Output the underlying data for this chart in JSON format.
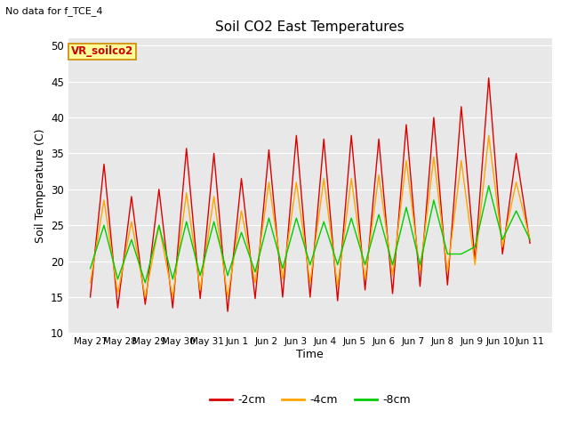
{
  "title": "Soil CO2 East Temperatures",
  "xlabel": "Time",
  "ylabel": "Soil Temperature (C)",
  "note": "No data for f_TCE_4",
  "annotation": "VR_soilco2",
  "ylim": [
    10,
    51
  ],
  "yticks": [
    10,
    15,
    20,
    25,
    30,
    35,
    40,
    45,
    50
  ],
  "xlabels": [
    "May 27",
    "May 28",
    "May 29",
    "May 30",
    "May 31",
    "Jun 1",
    "Jun 2",
    "Jun 3",
    "Jun 4",
    "Jun 5",
    "Jun 6",
    "Jun 7",
    "Jun 8",
    "Jun 9",
    "Jun 10",
    "Jun 11"
  ],
  "colors": {
    "neg2cm": "#dd0000",
    "neg4cm": "#ffa500",
    "neg8cm": "#00cc00",
    "background": "#e8e8e8",
    "annotation_bg": "#ffff99",
    "annotation_border": "#cc8800"
  },
  "legend": [
    "-2cm",
    "-4cm",
    "-8cm"
  ],
  "t_neg2cm": [
    15.0,
    33.5,
    13.5,
    29.0,
    14.0,
    30.0,
    13.5,
    35.7,
    14.8,
    35.0,
    13.0,
    31.5,
    14.8,
    35.5,
    15.0,
    37.5,
    15.0,
    37.0,
    14.5,
    37.5,
    16.0,
    37.0,
    15.5,
    39.0,
    16.5,
    40.0,
    16.7,
    41.5,
    20.0,
    45.5,
    21.0,
    35.0,
    22.5
  ],
  "t_neg4cm": [
    17.0,
    28.5,
    15.5,
    25.5,
    15.0,
    25.0,
    15.0,
    29.5,
    16.0,
    29.0,
    15.0,
    27.0,
    17.0,
    31.0,
    17.5,
    31.0,
    17.0,
    31.5,
    16.5,
    31.5,
    17.5,
    32.0,
    18.0,
    34.0,
    18.5,
    34.5,
    18.5,
    34.0,
    19.5,
    37.5,
    22.0,
    31.0,
    23.0
  ],
  "t_neg8cm": [
    19.0,
    25.0,
    17.5,
    23.0,
    17.0,
    25.0,
    17.5,
    25.5,
    18.0,
    25.5,
    18.0,
    24.0,
    18.5,
    26.0,
    19.0,
    26.0,
    19.5,
    25.5,
    19.5,
    26.0,
    19.5,
    26.5,
    19.5,
    27.5,
    19.5,
    28.5,
    21.0,
    21.0,
    22.0,
    30.5,
    23.0,
    27.0,
    23.0
  ],
  "figsize": [
    6.4,
    4.8
  ],
  "dpi": 100
}
